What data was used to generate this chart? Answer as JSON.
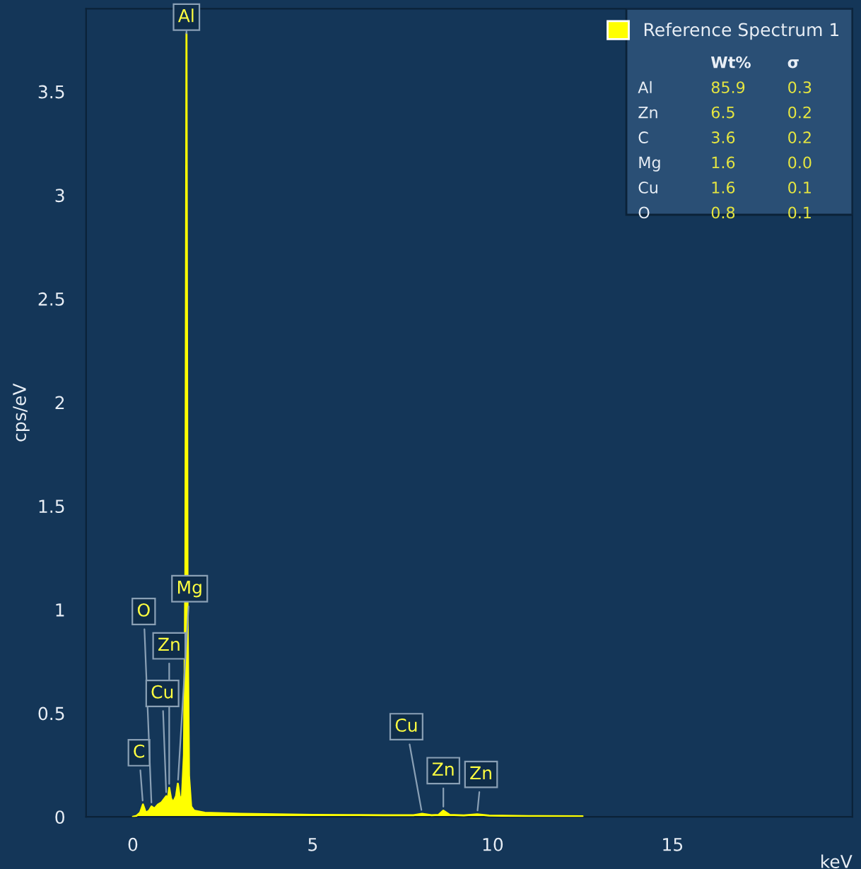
{
  "chart_data": {
    "type": "area",
    "xlabel": "keV",
    "ylabel": "cps/eV",
    "x": [
      0.0,
      0.1,
      0.2,
      0.28,
      0.36,
      0.45,
      0.52,
      0.6,
      0.7,
      0.8,
      0.93,
      0.97,
      1.01,
      1.06,
      1.12,
      1.2,
      1.25,
      1.3,
      1.36,
      1.42,
      1.46,
      1.49,
      1.52,
      1.56,
      1.62,
      1.7,
      2.0,
      3.0,
      4.0,
      5.0,
      6.0,
      7.0,
      7.8,
      8.04,
      8.3,
      8.5,
      8.63,
      8.8,
      9.2,
      9.57,
      9.9,
      11.0,
      12.5
    ],
    "series": [
      {
        "name": "Reference Spectrum 1",
        "color": "#ffff00",
        "values": [
          0.0,
          0.005,
          0.02,
          0.06,
          0.02,
          0.03,
          0.05,
          0.04,
          0.06,
          0.07,
          0.1,
          0.08,
          0.14,
          0.09,
          0.07,
          0.1,
          0.16,
          0.1,
          0.08,
          0.3,
          1.2,
          3.78,
          1.0,
          0.2,
          0.05,
          0.03,
          0.02,
          0.015,
          0.012,
          0.01,
          0.009,
          0.008,
          0.008,
          0.015,
          0.008,
          0.01,
          0.03,
          0.01,
          0.007,
          0.012,
          0.006,
          0.004,
          0.003
        ]
      }
    ],
    "annotations": [
      {
        "text": "Al",
        "x": 1.49,
        "y": 3.78
      },
      {
        "text": "C",
        "x": 0.28,
        "y": 0.06
      },
      {
        "text": "O",
        "x": 0.52,
        "y": 0.05
      },
      {
        "text": "Mg",
        "x": 1.25,
        "y": 0.16
      },
      {
        "text": "Zn",
        "x": 1.01,
        "y": 0.14
      },
      {
        "text": "Cu",
        "x": 0.93,
        "y": 0.1
      },
      {
        "text": "Cu",
        "x": 8.04,
        "y": 0.015
      },
      {
        "text": "Zn",
        "x": 8.63,
        "y": 0.03
      },
      {
        "text": "Zn",
        "x": 9.57,
        "y": 0.012
      },
      "Wt%",
      "σ",
      "Al",
      "85.9",
      "0.3",
      "Zn",
      "6.5",
      "0.2",
      "C",
      "3.6",
      "0.2",
      "Mg",
      "1.6",
      "0.0",
      "Cu",
      "1.6",
      "0.1",
      "O",
      "0.8",
      "0.1"
    ],
    "xlim": [
      -1.3,
      20
    ],
    "xticks": [
      0,
      5,
      10,
      15
    ],
    "ylim": [
      0,
      3.9
    ],
    "yticks": [
      0,
      0.5,
      1,
      1.5,
      2,
      2.5,
      3,
      3.5
    ],
    "legend": "top right",
    "grid": false
  }
}
